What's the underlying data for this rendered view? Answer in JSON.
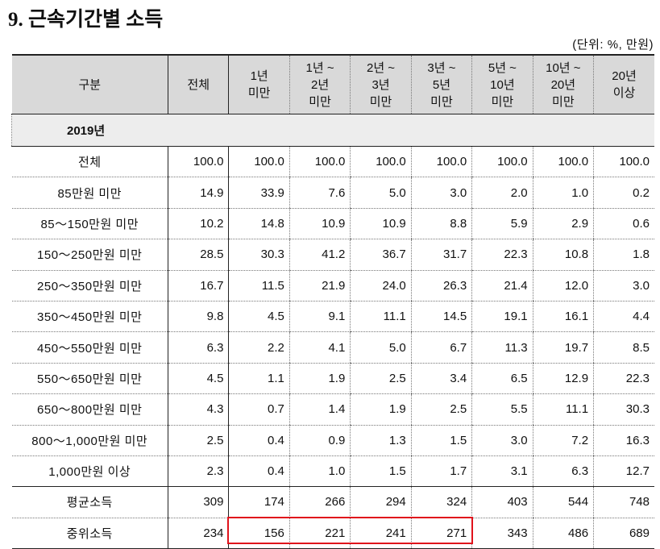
{
  "title": "9. 근속기간별 소득",
  "unit": "(단위: %, 만원)",
  "table": {
    "header": [
      "구분",
      "전체",
      "1년\n미만",
      "1년 ~\n2년\n미만",
      "2년 ~\n3년\n미만",
      "3년 ~\n5년\n미만",
      "5년 ~\n10년\n미만",
      "10년 ~\n20년\n미만",
      "20년\n이상"
    ],
    "section": "2019년",
    "rows": [
      [
        "전체",
        "100.0",
        "100.0",
        "100.0",
        "100.0",
        "100.0",
        "100.0",
        "100.0",
        "100.0"
      ],
      [
        "85만원 미만",
        "14.9",
        "33.9",
        "7.6",
        "5.0",
        "3.0",
        "2.0",
        "1.0",
        "0.2"
      ],
      [
        "85～150만원 미만",
        "10.2",
        "14.8",
        "10.9",
        "10.9",
        "8.8",
        "5.9",
        "2.9",
        "0.6"
      ],
      [
        "150～250만원 미만",
        "28.5",
        "30.3",
        "41.2",
        "36.7",
        "31.7",
        "22.3",
        "10.8",
        "1.8"
      ],
      [
        "250～350만원 미만",
        "16.7",
        "11.5",
        "21.9",
        "24.0",
        "26.3",
        "21.4",
        "12.0",
        "3.0"
      ],
      [
        "350～450만원 미만",
        "9.8",
        "4.5",
        "9.1",
        "11.1",
        "14.5",
        "19.1",
        "16.1",
        "4.4"
      ],
      [
        "450～550만원 미만",
        "6.3",
        "2.2",
        "4.1",
        "5.0",
        "6.7",
        "11.3",
        "19.7",
        "8.5"
      ],
      [
        "550～650만원 미만",
        "4.5",
        "1.1",
        "1.9",
        "2.5",
        "3.4",
        "6.5",
        "12.9",
        "22.3"
      ],
      [
        "650～800만원 미만",
        "4.3",
        "0.7",
        "1.4",
        "1.9",
        "2.5",
        "5.5",
        "11.1",
        "30.3"
      ],
      [
        "800～1,000만원 미만",
        "2.5",
        "0.4",
        "0.9",
        "1.3",
        "1.5",
        "3.0",
        "7.2",
        "16.3"
      ],
      [
        "1,000만원 이상",
        "2.3",
        "0.4",
        "1.0",
        "1.5",
        "1.7",
        "3.1",
        "6.3",
        "12.7"
      ],
      [
        "평균소득",
        "309",
        "174",
        "266",
        "294",
        "324",
        "403",
        "544",
        "748"
      ],
      [
        "중위소득",
        "234",
        "156",
        "221",
        "241",
        "271",
        "343",
        "486",
        "689"
      ]
    ]
  }
}
